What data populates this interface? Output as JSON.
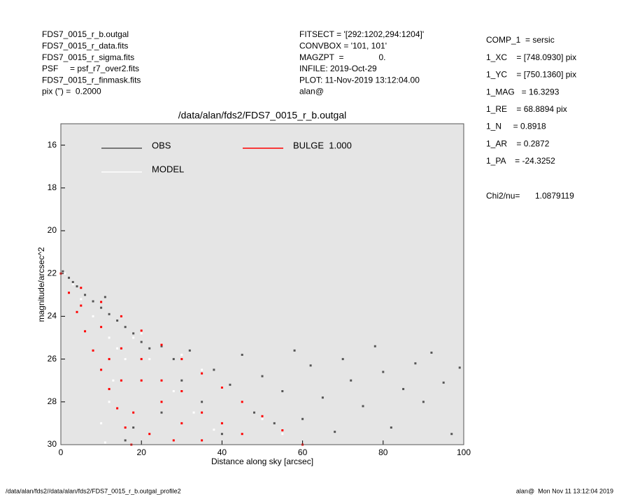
{
  "header": {
    "left": [
      "FDS7_0015_r_b.outgal",
      "FDS7_0015_r_data.fits",
      "FDS7_0015_r_sigma.fits",
      "PSF     = psf_r7_over2.fits",
      "FDS7_0015_r_finmask.fits",
      "pix (\") =  0.2000"
    ],
    "middle": [
      "FITSECT = '[292:1202,294:1204]'",
      "CONVBOX = '101, 101'",
      "MAGZPT  =               0.",
      "INFILE: 2019-Oct-29",
      "PLOT: 11-Nov-2019 13:12:04.00",
      "alan@"
    ],
    "right": [
      "COMP_1  = sersic",
      "1_XC    = [748.0930] pix",
      "1_YC    = [750.1360] pix",
      "1_MAG   = 16.3293",
      "1_RE    = 68.8894 pix",
      "1_N     = 0.8918",
      "1_AR    = 0.2872",
      "1_PA    = -24.3252"
    ],
    "chi2": {
      "label": "Chi2/nu=",
      "value": "1.0879119"
    }
  },
  "footer": {
    "left": "/data/alan/fds2//data/alan/fds2/FDS7_0015_r_b.outgal_profile2",
    "right": "alan@  Mon Nov 11 13:12:04 2019"
  },
  "chart_data": {
    "type": "scatter",
    "title": "/data/alan/fds2/FDS7_0015_r_b.outgal",
    "xlabel": "Distance along sky [arcsec]",
    "ylabel": "magnitude/arcsec^2",
    "xlim": [
      0,
      100
    ],
    "xticks": [
      0,
      20,
      40,
      60,
      80,
      100
    ],
    "ylim": [
      30,
      15
    ],
    "yticks": [
      16,
      18,
      20,
      22,
      24,
      26,
      28,
      30
    ],
    "series": [
      {
        "name": "OBS",
        "color": "#555555",
        "x": [
          0.5,
          2,
          3,
          4,
          6,
          8,
          10,
          11,
          12,
          14,
          16,
          18,
          20,
          22,
          25,
          28,
          30,
          32,
          35,
          38,
          40,
          42,
          45,
          48,
          50,
          53,
          55,
          58,
          60,
          62,
          65,
          68,
          70,
          72,
          75,
          78,
          80,
          82,
          85,
          88,
          90,
          92,
          95,
          97,
          99,
          16,
          18,
          25
        ],
        "values": [
          21.9,
          22.2,
          22.4,
          22.6,
          23.0,
          23.3,
          23.6,
          23.1,
          23.9,
          24.2,
          24.5,
          24.8,
          25.2,
          25.5,
          25.4,
          26,
          27,
          25.6,
          28,
          26.5,
          29.5,
          27.2,
          25.8,
          28.5,
          26.8,
          29,
          27.5,
          25.6,
          28.8,
          26.3,
          27.8,
          29.4,
          26,
          27,
          28.2,
          25.4,
          26.6,
          29.2,
          27.4,
          26.2,
          28,
          25.7,
          27.1,
          29.5,
          26.4,
          29.8,
          29.2,
          28.5
        ]
      },
      {
        "name": "MODEL",
        "color": "#ffffff",
        "x": [
          1,
          3,
          5,
          8,
          10,
          12,
          14,
          16,
          12,
          10,
          20,
          25,
          30,
          35,
          40,
          45,
          50,
          55,
          11,
          13,
          22,
          28,
          33,
          38,
          18
        ],
        "values": [
          22,
          22.5,
          23.2,
          24,
          24.5,
          25,
          25.5,
          26,
          28,
          29,
          24.8,
          25.3,
          25.8,
          26.5,
          27.3,
          28,
          28.8,
          29.5,
          29.9,
          27,
          26,
          27.5,
          28.5,
          29.3,
          25
        ]
      },
      {
        "name": "BULGE  1.000",
        "color": "#ff0000",
        "x": [
          0,
          2,
          4,
          6,
          8,
          10,
          12,
          14,
          16,
          17.5,
          5,
          10,
          15,
          20,
          25,
          30,
          35,
          40,
          45,
          50,
          55,
          60,
          5,
          10,
          15,
          20,
          25,
          30,
          35,
          15,
          20,
          25,
          30,
          35,
          40,
          45,
          22,
          28,
          18,
          12
        ],
        "values": [
          22,
          22.9,
          23.8,
          24.7,
          25.6,
          26.5,
          27.4,
          28.3,
          29.2,
          30,
          22.67,
          23.33,
          24,
          24.67,
          25.33,
          26,
          26.67,
          27.33,
          28,
          28.67,
          29.33,
          30,
          23.5,
          24.5,
          25.5,
          27,
          28,
          29,
          29.8,
          27,
          26,
          27,
          27.5,
          28.5,
          29,
          29.5,
          29.5,
          29.8,
          28.5,
          26
        ]
      }
    ]
  }
}
